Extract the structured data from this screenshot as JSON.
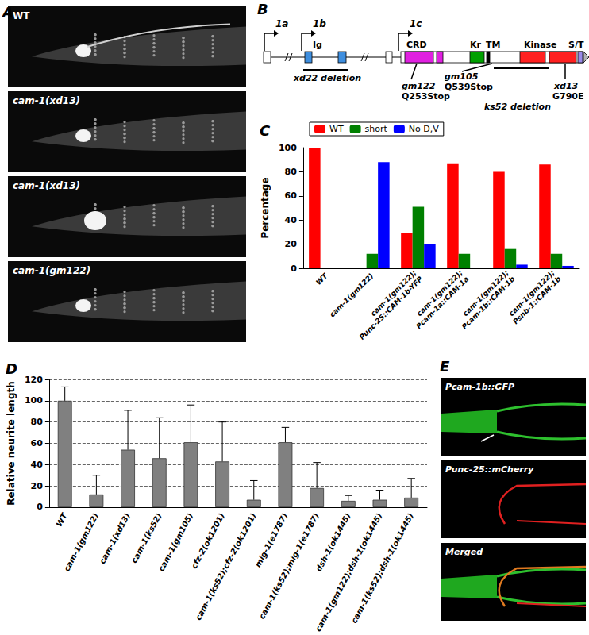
{
  "chart_data": [
    {
      "type": "bar",
      "title": "C",
      "ylabel": "Percentage",
      "categories": [
        "WT",
        "cam-1(gm122)",
        "cam-1(gm122);\nPunc-25::CAM-1b-YFP",
        "cam-1(gm122);\nPcam-1a::CAM-1a",
        "cam-1(gm122);\nPcam-1b::CAM-1b",
        "cam-1(gm122);\nPsnb-1::CAM-1b"
      ],
      "series": [
        {
          "name": "WT",
          "color": "#ff0000",
          "values": [
            100,
            0,
            29,
            87,
            80,
            86
          ]
        },
        {
          "name": "short",
          "color": "#008000",
          "values": [
            0,
            12,
            51,
            12,
            16,
            12
          ]
        },
        {
          "name": "No D,V",
          "color": "#0000ff",
          "values": [
            0,
            88,
            20,
            0,
            3,
            2
          ]
        }
      ],
      "ylim": [
        0,
        100
      ],
      "yticks": [
        0,
        20,
        40,
        60,
        80,
        100
      ],
      "grid": false,
      "legend": "top"
    },
    {
      "type": "bar",
      "title": "D",
      "ylabel": "Relative neurite length",
      "categories": [
        "WT",
        "cam-1(gm122)",
        "cam-1(xd13)",
        "cam-1(ks52)",
        "cam-1(gm105)",
        "cfz-2(ok1201)",
        "cam-1(ks52);cfz-2(ok1201)",
        "mig-1(e1787)",
        "cam-1(ks52);mig-1(e1787)",
        "dsh-1(ok1445)",
        "cam-1(gm122);dsh-1(ok1445)",
        "cam-1(ks52);dsh-1(ok1445)"
      ],
      "values": [
        100,
        12,
        54,
        46,
        61,
        43,
        7,
        61,
        18,
        6,
        7,
        9
      ],
      "errors": [
        13,
        18,
        37,
        38,
        35,
        37,
        18,
        14,
        24,
        5,
        9,
        18
      ],
      "color": "#808080",
      "ylim": [
        0,
        120
      ],
      "yticks": [
        0,
        20,
        40,
        60,
        80,
        100,
        120
      ],
      "grid": true
    }
  ],
  "figure": {
    "panel_a": {
      "title": "A",
      "images": [
        "WT",
        "cam-1(xd13)",
        "cam-1(xd13)",
        "cam-1(gm122)"
      ]
    },
    "panel_b": {
      "title": "B",
      "promoters": [
        "1a",
        "1b",
        "1c"
      ],
      "domains": [
        "Ig",
        "CRD",
        "Kr",
        "TM",
        "Kinase",
        "S/T"
      ],
      "mutations": [
        {
          "name": "xd22 deletion"
        },
        {
          "name": "gm122",
          "effect": "Q253Stop"
        },
        {
          "name": "gm105",
          "effect": "Q539Stop"
        },
        {
          "name": "ks52 deletion"
        },
        {
          "name": "xd13",
          "effect": "G790E"
        }
      ]
    },
    "panel_e": {
      "title": "E",
      "images": [
        "Pcam-1b::GFP",
        "Punc-25::mCherry",
        "Merged"
      ]
    }
  }
}
